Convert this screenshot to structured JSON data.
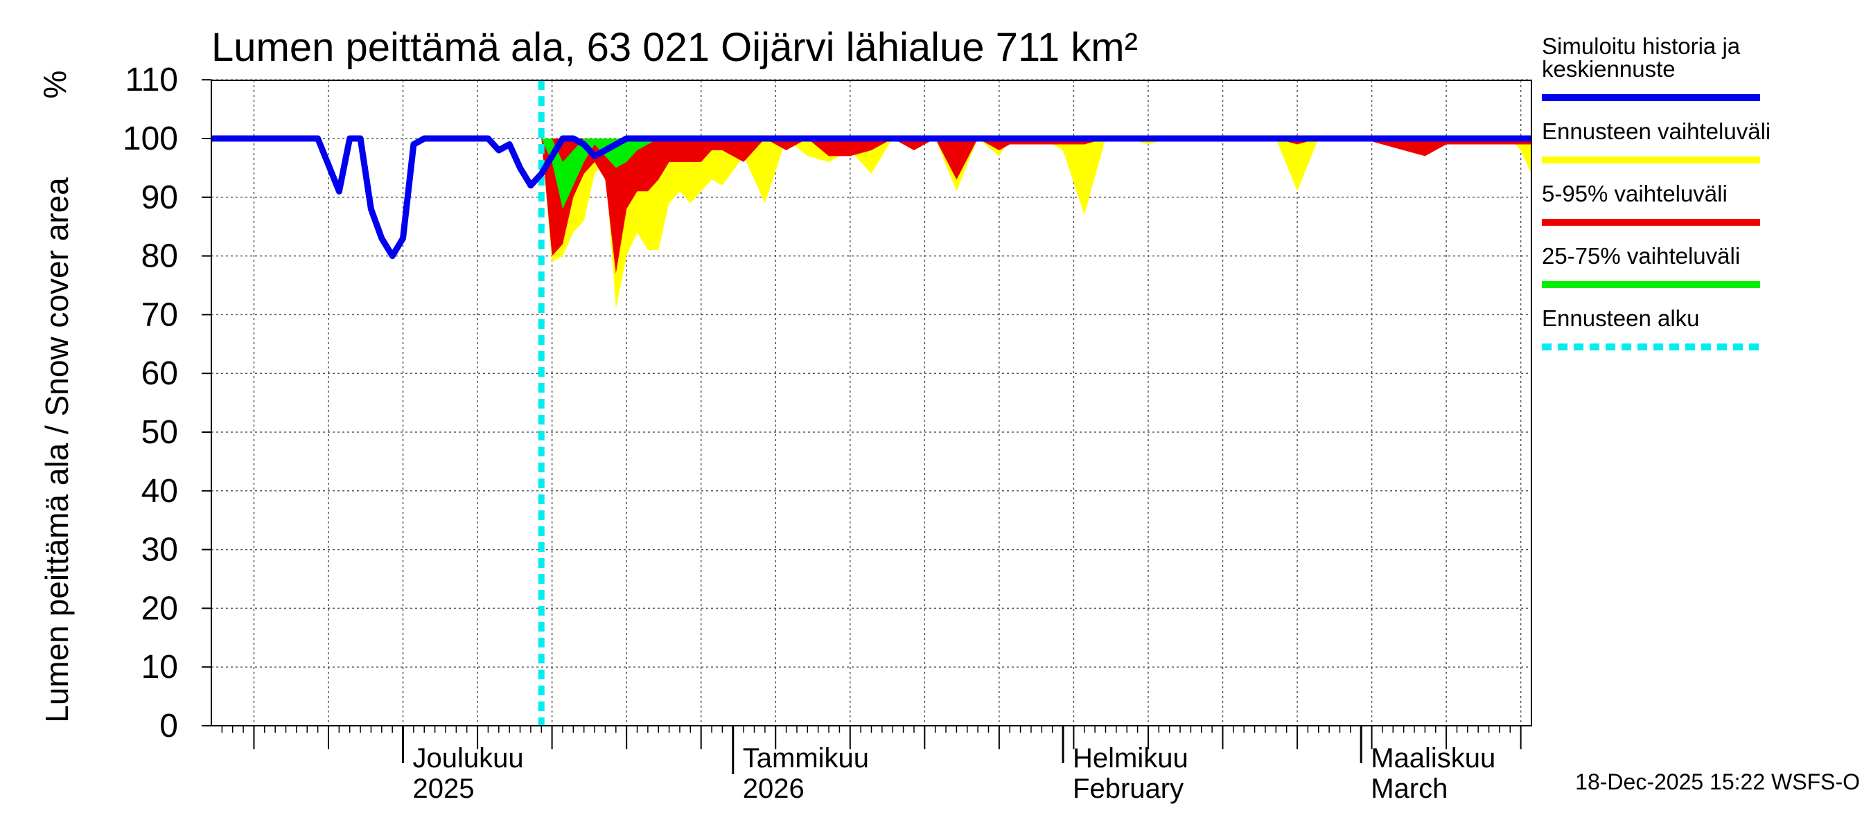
{
  "chart_data": {
    "type": "area",
    "title": "Lumen peittämä ala, 63 021 Oijärvi lähialue 711 km²",
    "ylabel": "Lumen peittämä ala / Snow cover area",
    "yunit": "%",
    "ylim": [
      0,
      110
    ],
    "yticks": [
      0,
      10,
      20,
      30,
      40,
      50,
      60,
      70,
      80,
      90,
      100,
      110
    ],
    "x_range_days": [
      0,
      124
    ],
    "x_origin_date": "2025-11-13",
    "forecast_start_day": 31,
    "month_ticks": [
      {
        "day": 18,
        "line1": "Joulukuu",
        "line2": "2025",
        "major": false
      },
      {
        "day": 49,
        "line1": "Tammikuu",
        "line2": "2026",
        "major": true
      },
      {
        "day": 80,
        "line1": "Helmikuu",
        "line2": "February",
        "major": false
      },
      {
        "day": 108,
        "line1": "Maaliskuu",
        "line2": "March",
        "major": false
      }
    ],
    "series": [
      {
        "name": "Simuloitu historia ja keskiennuste",
        "color": "#0000ee",
        "x": [
          0,
          10,
          12,
          13,
          14,
          15,
          16,
          17,
          18,
          19,
          20,
          21,
          23,
          25,
          26,
          27,
          28,
          29,
          30,
          31,
          32,
          33,
          34,
          35,
          36,
          37,
          38,
          39,
          40,
          41,
          42,
          43,
          124
        ],
        "y": [
          100,
          100,
          91,
          100,
          100,
          88,
          83,
          80,
          83,
          99,
          100,
          100,
          100,
          100,
          100,
          98,
          99,
          95,
          92,
          94,
          97,
          100,
          100,
          99,
          97,
          98,
          99,
          100,
          100,
          100,
          100,
          100,
          100
        ]
      },
      {
        "name": "Ennusteen vaihteluväli",
        "color": "#ffff00",
        "x": [
          31,
          32,
          33,
          34,
          35,
          36,
          37,
          38,
          39,
          40,
          41,
          42,
          43,
          44,
          45,
          46,
          47,
          48,
          50,
          52,
          54,
          56,
          58,
          60,
          62,
          64,
          66,
          68,
          70,
          72,
          74,
          75,
          76,
          78,
          80,
          82,
          84,
          86,
          88,
          90,
          92,
          94,
          96,
          98,
          100,
          102,
          104,
          106,
          108,
          110,
          112,
          114,
          116,
          118,
          120,
          122,
          123,
          124
        ],
        "lo": [
          100,
          79,
          80,
          84,
          86,
          94,
          96,
          71,
          80,
          84,
          81,
          81,
          89,
          91,
          89,
          91,
          93,
          92,
          97,
          89,
          100,
          97,
          96,
          98,
          94,
          100,
          100,
          100,
          91,
          100,
          97,
          100,
          100,
          100,
          98,
          87,
          100,
          100,
          99,
          100,
          100,
          100,
          100,
          100,
          100,
          91,
          100,
          100,
          100,
          100,
          100,
          100,
          100,
          100,
          100,
          100,
          98,
          94
        ],
        "hi": [
          100,
          100,
          100,
          100,
          100,
          100,
          100,
          100,
          100,
          100,
          100,
          100,
          100,
          100,
          100,
          100,
          100,
          100,
          100,
          100,
          100,
          100,
          100,
          100,
          100,
          100,
          100,
          100,
          100,
          100,
          100,
          100,
          100,
          100,
          100,
          100,
          100,
          100,
          100,
          100,
          100,
          100,
          100,
          100,
          100,
          100,
          100,
          100,
          100,
          100,
          100,
          100,
          100,
          100,
          100,
          100,
          100,
          100
        ]
      },
      {
        "name": "5-95% vaihteluväli",
        "color": "#ee0000",
        "x": [
          31,
          32,
          33,
          34,
          35,
          36,
          37,
          38,
          39,
          40,
          41,
          42,
          43,
          44,
          45,
          46,
          47,
          48,
          50,
          52,
          54,
          56,
          58,
          60,
          62,
          64,
          66,
          68,
          70,
          72,
          74,
          75,
          76,
          78,
          80,
          82,
          84,
          86,
          88,
          90,
          92,
          94,
          96,
          98,
          100,
          102,
          104,
          106,
          108,
          110,
          112,
          114,
          116,
          118,
          120,
          122,
          123,
          124
        ],
        "lo": [
          100,
          80,
          82,
          90,
          94,
          96,
          93,
          77,
          88,
          91,
          91,
          93,
          96,
          96,
          96,
          96,
          98,
          98,
          96,
          100,
          98,
          100,
          97,
          97,
          98,
          100,
          98,
          100,
          93,
          100,
          98,
          99,
          99,
          99,
          99,
          99,
          100,
          100,
          100,
          100,
          100,
          100,
          100,
          100,
          100,
          99,
          100,
          100,
          100,
          99,
          98,
          97,
          99,
          99,
          99,
          99,
          99,
          99
        ],
        "hi": [
          100,
          100,
          100,
          100,
          100,
          100,
          100,
          100,
          100,
          100,
          100,
          100,
          100,
          100,
          100,
          100,
          100,
          100,
          100,
          100,
          100,
          100,
          100,
          100,
          100,
          100,
          100,
          100,
          100,
          100,
          100,
          100,
          100,
          100,
          100,
          100,
          100,
          100,
          100,
          100,
          100,
          100,
          100,
          100,
          100,
          100,
          100,
          100,
          100,
          100,
          100,
          100,
          100,
          100,
          100,
          100,
          100,
          100
        ]
      },
      {
        "name": "25-75% vaihteluväli",
        "color": "#00ee00",
        "x": [
          31,
          32,
          33,
          34,
          35,
          36,
          37,
          38,
          39,
          40,
          41,
          42,
          43
        ],
        "lo": [
          100,
          96,
          88,
          92,
          96,
          99,
          97,
          95,
          96,
          98,
          99,
          100,
          100
        ],
        "hi": [
          100,
          100,
          96,
          98,
          100,
          100,
          100,
          100,
          100,
          100,
          100,
          100,
          100
        ]
      }
    ],
    "legend": [
      {
        "lines": [
          "Simuloitu historia ja",
          "keskiennuste"
        ],
        "color": "#0000ee",
        "style": "solid"
      },
      {
        "lines": [
          "Ennusteen vaihteluväli"
        ],
        "color": "#ffff00",
        "style": "solid"
      },
      {
        "lines": [
          "5-95% vaihteluväli"
        ],
        "color": "#ee0000",
        "style": "solid"
      },
      {
        "lines": [
          "25-75% vaihteluväli"
        ],
        "color": "#00ee00",
        "style": "solid"
      },
      {
        "lines": [
          "Ennusteen alku"
        ],
        "color": "#00eeee",
        "style": "dashed"
      }
    ],
    "timestamp": "18-Dec-2025 15:22 WSFS-O"
  }
}
